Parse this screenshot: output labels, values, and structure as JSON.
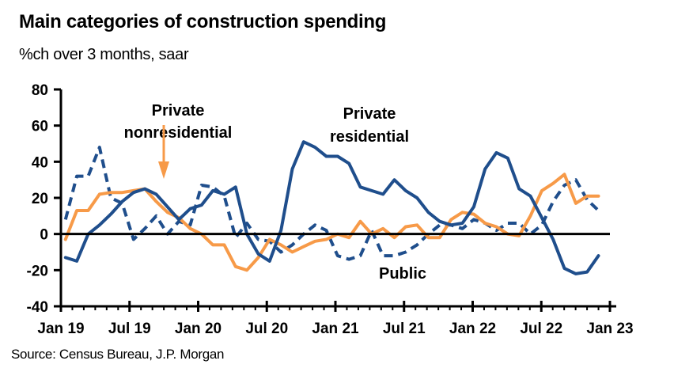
{
  "header": {
    "title": "Main categories of construction spending",
    "subtitle": "%ch over 3 months, saar"
  },
  "footer": {
    "source": "Source: Census Bureau, J.P. Morgan"
  },
  "chart_data": {
    "type": "line",
    "title": "Main categories of construction spending",
    "subtitle": "%ch over 3 months, saar",
    "xlabel": "",
    "ylabel": "",
    "ylim": [
      -40,
      80
    ],
    "yticks": [
      80,
      60,
      40,
      20,
      0,
      -20,
      -40
    ],
    "x_start": "Jan 2019",
    "x_frequency": "monthly",
    "xlim_months": [
      0,
      48
    ],
    "xtick_labels": [
      "Jan 19",
      "Jul 19",
      "Jan 20",
      "Jul 20",
      "Jan 21",
      "Jul 21",
      "Jan 22",
      "Jul 22",
      "Jan 23"
    ],
    "grid": false,
    "legend": "none (inline labels)",
    "series": [
      {
        "name": "Private residential",
        "style": "solid",
        "color": "#1f4e8c",
        "values": [
          -13,
          -15,
          0,
          5,
          11,
          18,
          23,
          25,
          22,
          15,
          8,
          14,
          16,
          24,
          22,
          26,
          0,
          -11,
          -15,
          2,
          36,
          51,
          48,
          43,
          43,
          39,
          26,
          24,
          22,
          30,
          24,
          20,
          12,
          7,
          5,
          6,
          15,
          36,
          45,
          42,
          25,
          21,
          9,
          -3,
          -19,
          -22,
          -21,
          -12
        ]
      },
      {
        "name": "Private nonresidential",
        "style": "solid",
        "color": "#f79a48",
        "values": [
          -3,
          13,
          13,
          22,
          23,
          23,
          24,
          25,
          18,
          12,
          9,
          3,
          0,
          -6,
          -6,
          -18,
          -20,
          -13,
          -3,
          -6,
          -10,
          -7,
          -4,
          -3,
          0,
          -2,
          7,
          0,
          3,
          -2,
          4,
          5,
          -2,
          -2,
          8,
          12,
          11,
          6,
          4,
          0,
          -1,
          10,
          24,
          28,
          33,
          17,
          21,
          21
        ]
      },
      {
        "name": "Public",
        "style": "dashed",
        "color": "#1f4e8c",
        "values": [
          8,
          32,
          32,
          48,
          20,
          17,
          -3,
          3,
          10,
          0,
          7,
          5,
          27,
          26,
          21,
          -2,
          6,
          -3,
          -4,
          -10,
          -6,
          0,
          5,
          2,
          -12,
          -14,
          -12,
          2,
          -12,
          -12,
          -10,
          -6,
          0,
          5,
          5,
          3,
          8,
          6,
          2,
          6,
          6,
          0,
          5,
          18,
          27,
          30,
          19,
          13
        ]
      }
    ],
    "annotations": [
      {
        "text": [
          "Private",
          "nonresidential"
        ],
        "target_series": "Private nonresidential",
        "arrow": true,
        "arrow_color": "#f79a48"
      },
      {
        "text": [
          "Private",
          "residential"
        ],
        "target_series": "Private residential",
        "arrow": false
      },
      {
        "text": [
          "Public"
        ],
        "target_series": "Public",
        "arrow": false
      }
    ]
  }
}
